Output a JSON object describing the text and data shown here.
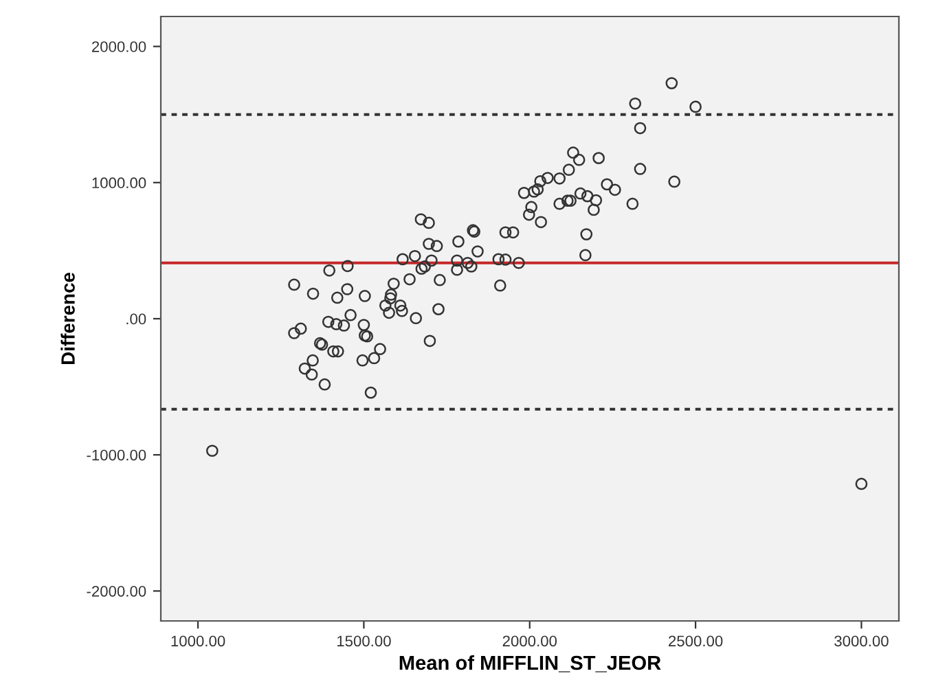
{
  "chart_data": {
    "type": "scatter",
    "xlabel": "Mean of MIFFLIN_ST_JEOR",
    "ylabel": "Difference",
    "x": [
      1290,
      1347,
      1396,
      1451,
      1420,
      1450,
      1503,
      1672,
      1696,
      1696,
      1720,
      1785,
      1617,
      1654,
      1704,
      1674,
      1684,
      1638,
      1729,
      1590,
      1582,
      1580,
      1565,
      1576,
      1610,
      1615,
      1657,
      1725,
      1781,
      1813,
      1829,
      1393,
      1417,
      1440,
      1460,
      1500,
      1503,
      1510,
      1290,
      1310,
      1368,
      1374,
      1408,
      1422,
      1322,
      1346,
      1343,
      1382,
      1496,
      1531,
      1549,
      1521,
      1699,
      1043,
      2428,
      2318,
      2500,
      2333,
      2131,
      2149,
      2208,
      2118,
      2090,
      2054,
      2032,
      2024,
      2013,
      1983,
      2333,
      2436,
      2233,
      2257,
      2153,
      2174,
      2200,
      2193,
      2114,
      2123,
      2090,
      2310,
      2005,
      1998,
      2034,
      2171,
      2168,
      1833,
      1927,
      1950,
      1843,
      1824,
      1781,
      1906,
      1927,
      1967,
      1911,
      3000
    ],
    "values": [
      250,
      184,
      354,
      387,
      154,
      217,
      167,
      730,
      704,
      550,
      534,
      567,
      437,
      460,
      427,
      367,
      384,
      290,
      284,
      257,
      177,
      150,
      97,
      44,
      97,
      57,
      4,
      70,
      427,
      410,
      650,
      -23,
      -40,
      -50,
      27,
      -46,
      -123,
      -130,
      -106,
      -73,
      -180,
      -190,
      -240,
      -240,
      -366,
      -306,
      -410,
      -483,
      -306,
      -290,
      -223,
      -543,
      -163,
      -970,
      1730,
      1580,
      1557,
      1400,
      1220,
      1167,
      1180,
      1094,
      1030,
      1034,
      1010,
      950,
      934,
      924,
      1100,
      1007,
      987,
      947,
      920,
      900,
      870,
      800,
      867,
      867,
      844,
      844,
      820,
      764,
      710,
      620,
      467,
      640,
      634,
      634,
      494,
      384,
      360,
      437,
      434,
      410,
      244,
      -1213
    ],
    "color": "#333333",
    "marker": "circle",
    "xlim": [
      888,
      3113
    ],
    "ylim": [
      -2220,
      2220
    ],
    "xticks": [
      {
        "value": 1000,
        "label": "1000.00"
      },
      {
        "value": 1500,
        "label": "1500.00"
      },
      {
        "value": 2000,
        "label": "2000.00"
      },
      {
        "value": 2500,
        "label": "2500.00"
      },
      {
        "value": 3000,
        "label": "3000.00"
      }
    ],
    "yticks": [
      {
        "value": -2000,
        "label": "-2000.00"
      },
      {
        "value": -1000,
        "label": "-1000.00"
      },
      {
        "value": 0,
        "label": ".00"
      },
      {
        "value": 1000,
        "label": "1000.00"
      },
      {
        "value": 2000,
        "label": "2000.00"
      }
    ],
    "ref_lines": [
      {
        "axis": "y",
        "value": 1500,
        "color": "#333333",
        "line_style": "dotted"
      },
      {
        "axis": "y",
        "value": 410,
        "color": "#c62828",
        "line_style": "solid"
      },
      {
        "axis": "y",
        "value": -665,
        "color": "#333333",
        "line_style": "dotted"
      }
    ],
    "grid": false
  }
}
